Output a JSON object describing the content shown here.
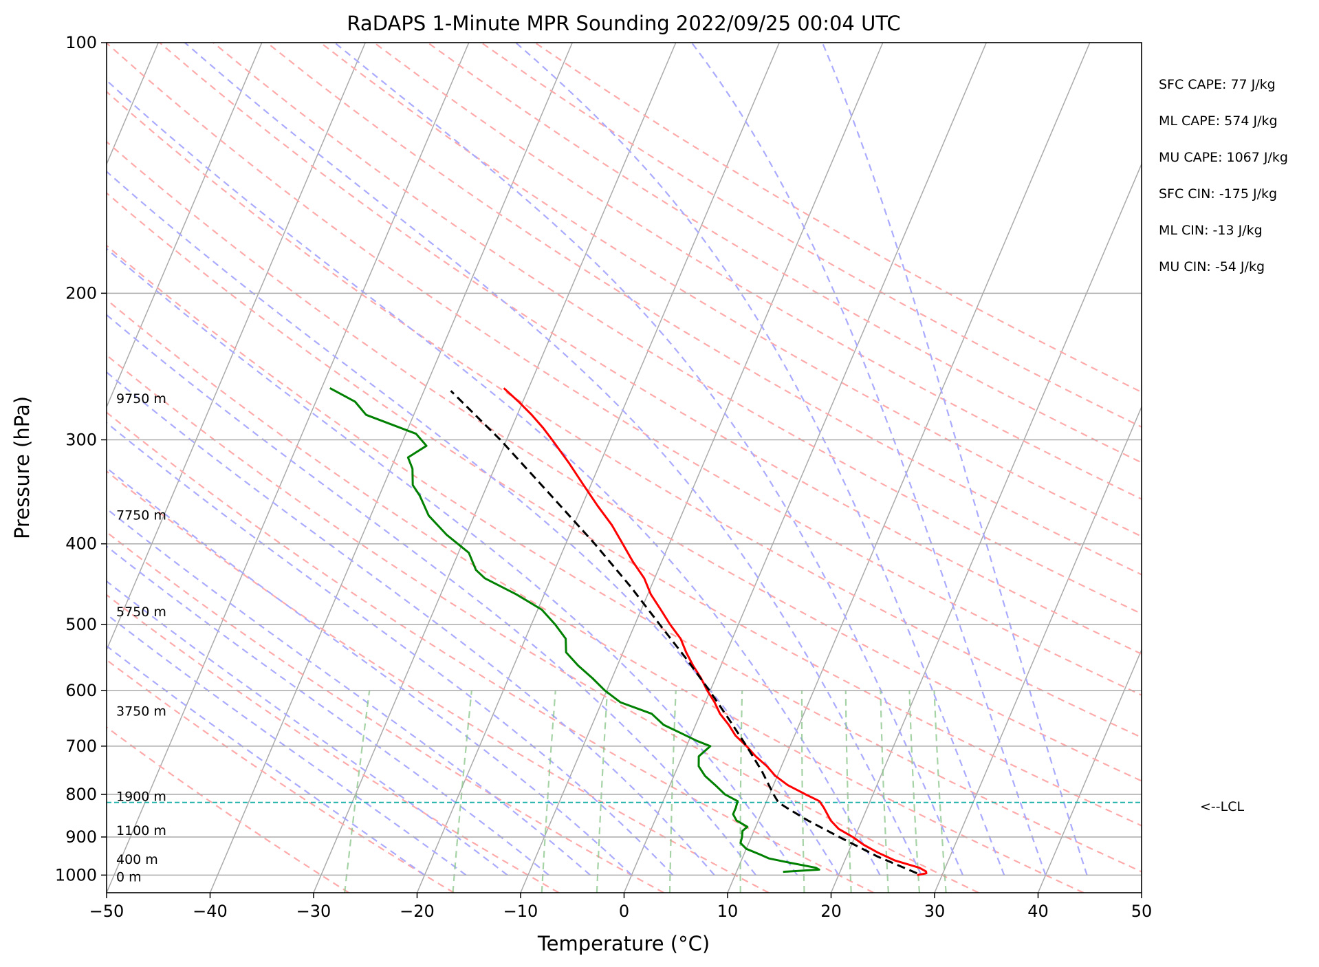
{
  "chart_data": {
    "type": "line",
    "title": "RaDAPS 1-Minute MPR Sounding 2022/09/25 00:04 UTC",
    "xlabel": "Temperature (°C)",
    "ylabel": "Pressure (hPa)",
    "xlim": [
      -50,
      50
    ],
    "ylim": [
      1050,
      100
    ],
    "y_scale": "log",
    "skew_T": true,
    "x_ticks": [
      "−50",
      "−40",
      "−30",
      "−20",
      "−10",
      "0",
      "10",
      "20",
      "30",
      "40",
      "50"
    ],
    "x_tick_values": [
      -50,
      -40,
      -30,
      -20,
      -10,
      0,
      10,
      20,
      30,
      40,
      50
    ],
    "y_ticks": [
      "100",
      "200",
      "300",
      "400",
      "500",
      "600",
      "700",
      "800",
      "900",
      "1000"
    ],
    "y_tick_values": [
      100,
      200,
      300,
      400,
      500,
      600,
      700,
      800,
      900,
      1000
    ],
    "grid": true,
    "series": [
      {
        "role": "temperature",
        "color": "#ff0000",
        "points": [
          [
            1000,
            27.6
          ],
          [
            995,
            28.4
          ],
          [
            990,
            28.3
          ],
          [
            980,
            27.5
          ],
          [
            960,
            24.8
          ],
          [
            940,
            22.9
          ],
          [
            920,
            21.2
          ],
          [
            900,
            19.8
          ],
          [
            880,
            18.1
          ],
          [
            860,
            17.0
          ],
          [
            850,
            16.6
          ],
          [
            830,
            15.8
          ],
          [
            815,
            15.1
          ],
          [
            800,
            13.5
          ],
          [
            780,
            11.4
          ],
          [
            760,
            9.8
          ],
          [
            740,
            8.6
          ],
          [
            720,
            7.1
          ],
          [
            700,
            5.8
          ],
          [
            680,
            4.3
          ],
          [
            660,
            3.2
          ],
          [
            640,
            1.9
          ],
          [
            620,
            0.9
          ],
          [
            600,
            -0.3
          ],
          [
            580,
            -1.4
          ],
          [
            560,
            -2.7
          ],
          [
            540,
            -3.9
          ],
          [
            520,
            -5.0
          ],
          [
            500,
            -6.6
          ],
          [
            480,
            -8.1
          ],
          [
            460,
            -9.7
          ],
          [
            440,
            -11.0
          ],
          [
            420,
            -12.8
          ],
          [
            400,
            -14.5
          ],
          [
            380,
            -16.3
          ],
          [
            360,
            -18.5
          ],
          [
            340,
            -20.7
          ],
          [
            320,
            -23.0
          ],
          [
            300,
            -25.6
          ],
          [
            290,
            -27.0
          ],
          [
            280,
            -28.6
          ],
          [
            270,
            -30.4
          ],
          [
            260,
            -32.4
          ]
        ]
      },
      {
        "role": "dewpoint",
        "color": "#008000",
        "points": [
          [
            991,
            14.5
          ],
          [
            985,
            17.9
          ],
          [
            980,
            17.5
          ],
          [
            965,
            14.5
          ],
          [
            955,
            12.6
          ],
          [
            945,
            11.6
          ],
          [
            930,
            10.0
          ],
          [
            915,
            9.2
          ],
          [
            900,
            9.1
          ],
          [
            885,
            8.9
          ],
          [
            875,
            9.2
          ],
          [
            860,
            7.9
          ],
          [
            845,
            7.3
          ],
          [
            830,
            7.3
          ],
          [
            815,
            7.2
          ],
          [
            800,
            5.7
          ],
          [
            780,
            4.4
          ],
          [
            760,
            3.0
          ],
          [
            740,
            2.0
          ],
          [
            720,
            1.6
          ],
          [
            700,
            2.3
          ],
          [
            690,
            0.8
          ],
          [
            675,
            -1.1
          ],
          [
            660,
            -3.1
          ],
          [
            640,
            -4.7
          ],
          [
            620,
            -8.2
          ],
          [
            600,
            -10.2
          ],
          [
            580,
            -11.9
          ],
          [
            560,
            -13.8
          ],
          [
            540,
            -15.5
          ],
          [
            520,
            -16.1
          ],
          [
            500,
            -17.7
          ],
          [
            480,
            -19.6
          ],
          [
            460,
            -22.7
          ],
          [
            440,
            -26.4
          ],
          [
            430,
            -27.6
          ],
          [
            410,
            -29.0
          ],
          [
            390,
            -31.9
          ],
          [
            370,
            -34.4
          ],
          [
            350,
            -36.1
          ],
          [
            340,
            -37.2
          ],
          [
            325,
            -37.9
          ],
          [
            315,
            -38.8
          ],
          [
            305,
            -37.5
          ],
          [
            295,
            -39.0
          ],
          [
            280,
            -44.6
          ],
          [
            270,
            -46.2
          ],
          [
            260,
            -49.2
          ]
        ]
      },
      {
        "role": "parcel",
        "color": "#000000",
        "style": "dashed",
        "points": [
          [
            995,
            27.5
          ],
          [
            950,
            23.0
          ],
          [
            900,
            18.5
          ],
          [
            860,
            14.8
          ],
          [
            830,
            12.2
          ],
          [
            818,
            11.2
          ],
          [
            800,
            10.4
          ],
          [
            750,
            8.3
          ],
          [
            700,
            5.8
          ],
          [
            650,
            3.0
          ],
          [
            600,
            -0.1
          ],
          [
            550,
            -3.6
          ],
          [
            500,
            -7.6
          ],
          [
            450,
            -12.0
          ],
          [
            400,
            -17.2
          ],
          [
            350,
            -23.4
          ],
          [
            300,
            -30.6
          ],
          [
            262,
            -37.4
          ]
        ]
      }
    ],
    "lcl": {
      "pressure": 818,
      "label": "<--LCL"
    },
    "height_labels": [
      {
        "label": "0 m",
        "pressure": 1006
      },
      {
        "label": "400 m",
        "pressure": 958
      },
      {
        "label": "1100 m",
        "pressure": 885
      },
      {
        "label": "1900 m",
        "pressure": 805
      },
      {
        "label": "3750 m",
        "pressure": 636
      },
      {
        "label": "5750 m",
        "pressure": 483
      },
      {
        "label": "7750 m",
        "pressure": 370
      },
      {
        "label": "9750 m",
        "pressure": 268
      }
    ],
    "stats": [
      "SFC CAPE: 77 J/kg",
      "ML CAPE: 574 J/kg",
      "MU CAPE: 1067 J/kg",
      "SFC CIN: -175 J/kg",
      "ML CIN: -13 J/kg",
      "MU CIN: -54 J/kg"
    ],
    "background_lines": {
      "isotherm_color": "#aaaaaa",
      "dry_adiabat_color": "#ffaaaa",
      "moist_adiabat_color": "#aaaaff",
      "mixing_ratio_color": "#88c488",
      "lcl_color": "#20b2aa"
    }
  }
}
